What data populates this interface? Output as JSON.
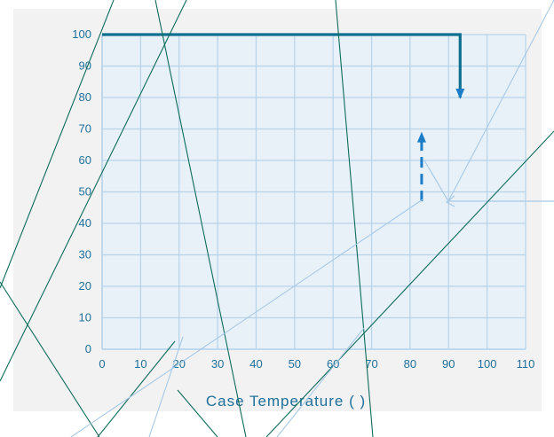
{
  "chart_data": {
    "type": "line",
    "title": "",
    "xlabel": "Case Temperature (   )",
    "ylabel": "",
    "x_ticks": [
      "0",
      "10",
      "20",
      "30",
      "40",
      "50",
      "60",
      "70",
      "80",
      "90",
      "100",
      "110"
    ],
    "y_ticks": [
      "0",
      "10",
      "20",
      "30",
      "40",
      "50",
      "60",
      "70",
      "80",
      "90",
      "100"
    ],
    "xlim": [
      0,
      110
    ],
    "ylim": [
      0,
      100
    ],
    "grid": true,
    "legend": "none",
    "series": [
      {
        "x": [
          0,
          93,
          93
        ],
        "y": [
          100,
          100,
          80
        ]
      }
    ],
    "annotations": [
      {
        "kind": "dashed-arrow-up",
        "x": 83,
        "from_y": 47,
        "to_y": 68
      }
    ],
    "colors": {
      "plot_bg": "#e8f1f8",
      "grid": "#b7d3e9",
      "series": "#0f6f8f",
      "arrow": "#1b7cc7",
      "ticks": "#1f6f9a",
      "overlay_dark": "#0d6b5a",
      "overlay_light": "#a6c8e6",
      "outer_bg": "#f2f2f2"
    }
  }
}
